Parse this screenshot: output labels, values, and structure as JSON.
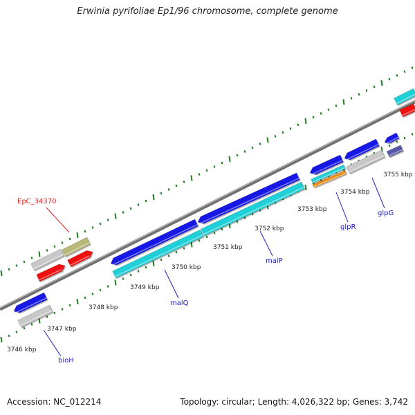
{
  "title": "Erwinia pyrifoliae Ep1/96 chromosome, complete genome",
  "footer": {
    "accession": "Accession: NC_012214",
    "topology": "Topology: circular; Length: 4,026,322 bp; Genes: 3,742"
  },
  "colors": {
    "background": "#ffffff",
    "backbone": "#8c8c8c",
    "ticks": "#1e7a1e",
    "gene_label": "#2020c8",
    "highlight_label": "#e02020",
    "feature_blue": "#1818e6",
    "feature_cyan": "#20d0d8",
    "feature_red": "#f01010",
    "feature_gray": "#c8c8c8",
    "feature_olive": "#b8b878",
    "feature_orange": "#f08c10",
    "feature_slate": "#5858a8"
  },
  "position_labels": [
    "3746 kbp",
    "3747 kbp",
    "3748 kbp",
    "3749 kbp",
    "3750 kbp",
    "3751 kbp",
    "3752 kbp",
    "3753 kbp",
    "3754 kbp",
    "3755 kbp"
  ],
  "gene_labels": [
    {
      "name": "bioH",
      "color": "blue"
    },
    {
      "name": "malQ",
      "color": "blue"
    },
    {
      "name": "malP",
      "color": "blue"
    },
    {
      "name": "glpR",
      "color": "blue"
    },
    {
      "name": "glpG",
      "color": "blue"
    },
    {
      "name": "EpC_34370",
      "color": "red"
    }
  ]
}
